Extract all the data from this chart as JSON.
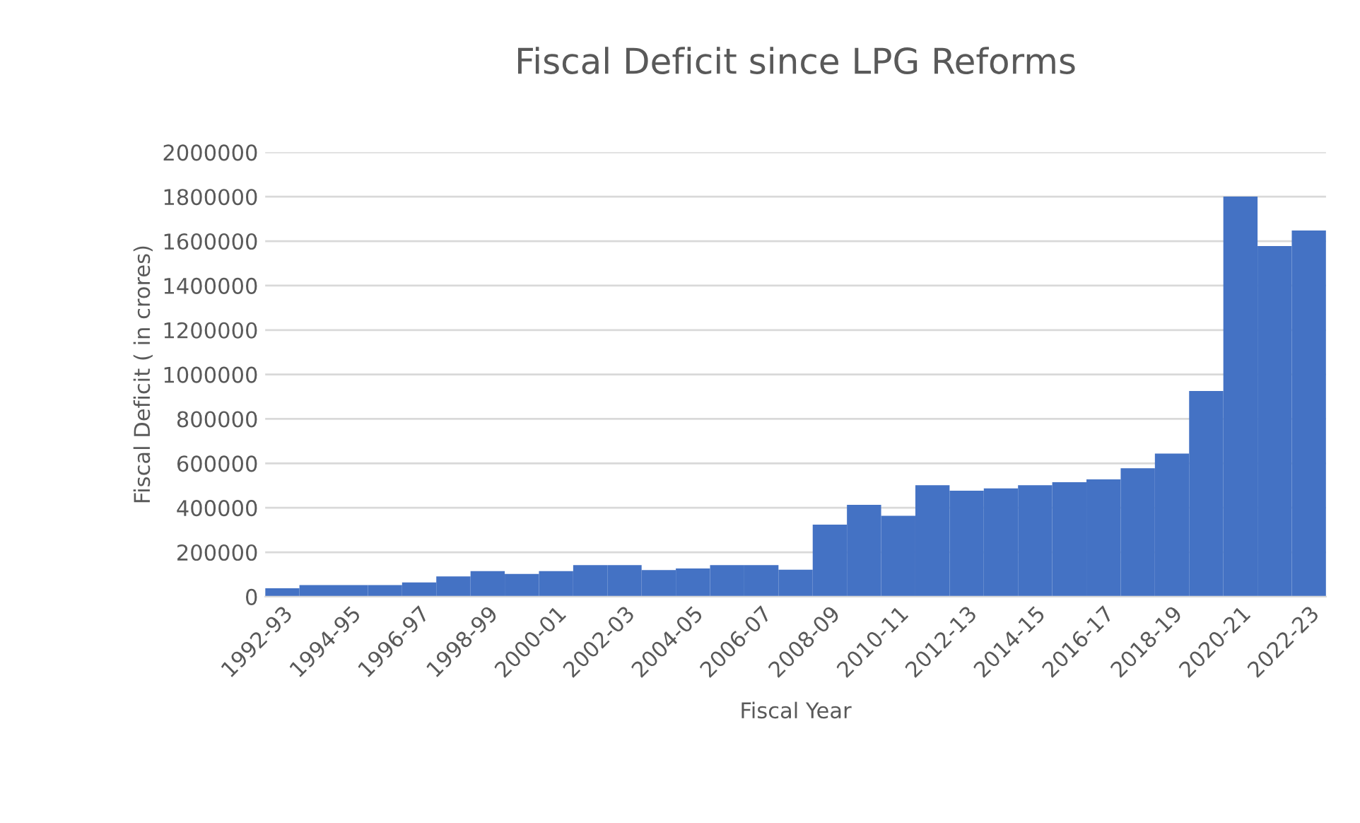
{
  "chart_data": {
    "type": "bar",
    "title": "Fiscal Deficit since LPG Reforms",
    "xlabel": "Fiscal Year",
    "ylabel": "Fiscal Deficit ( in crores)",
    "categories": [
      "1992-93",
      null,
      "1994-95",
      null,
      "1996-97",
      null,
      "1998-99",
      null,
      "2000-01",
      null,
      "2002-03",
      null,
      "2004-05",
      null,
      "2006-07",
      null,
      "2008-09",
      null,
      "2010-11",
      null,
      "2012-13",
      null,
      "2014-15",
      null,
      "2016-17",
      null,
      "2018-19",
      null,
      "2020-21",
      null,
      "2022-23"
    ],
    "series": [
      {
        "color": "#4472c4",
        "values": [
          38000,
          52000,
          52000,
          52000,
          64000,
          91000,
          115000,
          102000,
          115000,
          142000,
          142000,
          120000,
          127000,
          142000,
          142000,
          121000,
          324000,
          413000,
          364000,
          502000,
          477000,
          487000,
          502000,
          515000,
          528000,
          578000,
          644000,
          926000,
          1801000,
          1578000,
          1648000
        ]
      }
    ],
    "ylim": [
      0,
      2000000
    ],
    "yticks": [
      0,
      200000,
      400000,
      600000,
      800000,
      1000000,
      1200000,
      1400000,
      1600000,
      1800000,
      2000000
    ],
    "grid": "y",
    "legend": false
  }
}
